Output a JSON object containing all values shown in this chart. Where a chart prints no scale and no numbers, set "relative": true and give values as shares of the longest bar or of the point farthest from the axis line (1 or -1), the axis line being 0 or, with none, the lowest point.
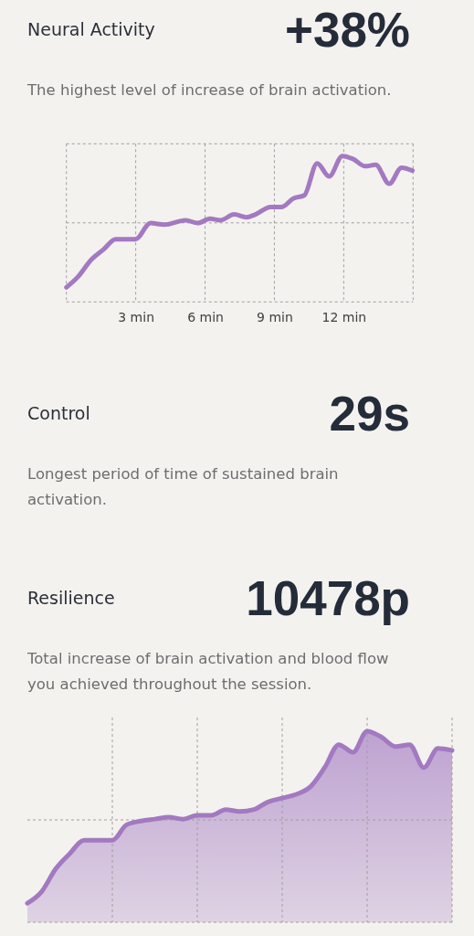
{
  "chart_data": [
    {
      "type": "line",
      "title": "Neural Activity",
      "subtitle": "The highest level of increase of brain activation.",
      "annotations": [
        "+38%"
      ],
      "relative": true,
      "grid": true,
      "marker": "none",
      "line_style": "solid",
      "x": [
        0,
        0.49,
        1.08,
        1.61,
        2.13,
        2.99,
        3.64,
        4.24,
        5.16,
        5.68,
        6.21,
        6.67,
        7.26,
        7.79,
        8.18,
        8.84,
        9.3,
        9.83,
        10.29,
        10.85,
        11.37,
        11.94,
        12.4,
        12.93,
        13.38,
        13.97,
        14.5,
        14.97
      ],
      "xlim": [
        0,
        15
      ],
      "xticks": [
        {
          "value": 0,
          "label": null
        },
        {
          "value": 3,
          "label": "3 min"
        },
        {
          "value": 6,
          "label": "6 min"
        },
        {
          "value": 9,
          "label": "9 min"
        },
        {
          "value": 12,
          "label": "12 min"
        },
        {
          "value": 15,
          "label": null
        }
      ],
      "series": [
        {
          "color": "#a379c1",
          "values": [
            0.1,
            0.17,
            0.29,
            0.36,
            0.43,
            0.43,
            0.54,
            0.53,
            0.56,
            0.54,
            0.57,
            0.56,
            0.6,
            0.58,
            0.6,
            0.65,
            0.65,
            0.71,
            0.73,
            0.95,
            0.86,
            1.0,
            0.98,
            0.93,
            0.94,
            0.81,
            0.92,
            0.9
          ]
        }
      ]
    },
    {
      "type": "other",
      "title": "Control",
      "subtitle": "Longest period of time of sustained brain activation.",
      "annotations": [
        "29s"
      ]
    },
    {
      "type": "area",
      "title": "Resilience",
      "subtitle": "Total increase of brain activation and blood flow you achieved throughout the session.",
      "annotations": [
        "10478p"
      ],
      "relative": true,
      "grid": true,
      "categories": [
        null,
        null,
        null,
        null,
        null,
        null,
        null,
        null,
        null,
        null,
        null,
        null,
        null,
        null,
        null,
        null,
        null,
        null,
        null,
        null,
        null,
        null,
        null,
        null,
        null,
        null,
        null,
        null,
        null,
        null,
        null
      ],
      "series": [
        {
          "color": "#a379c1",
          "values": [
            0.1,
            0.16,
            0.28,
            0.36,
            0.43,
            0.43,
            0.43,
            0.51,
            0.53,
            0.54,
            0.55,
            0.54,
            0.56,
            0.56,
            0.59,
            0.58,
            0.59,
            0.63,
            0.65,
            0.67,
            0.71,
            0.81,
            0.93,
            0.89,
            1.0,
            0.97,
            0.92,
            0.93,
            0.81,
            0.91,
            0.9
          ]
        }
      ]
    }
  ]
}
